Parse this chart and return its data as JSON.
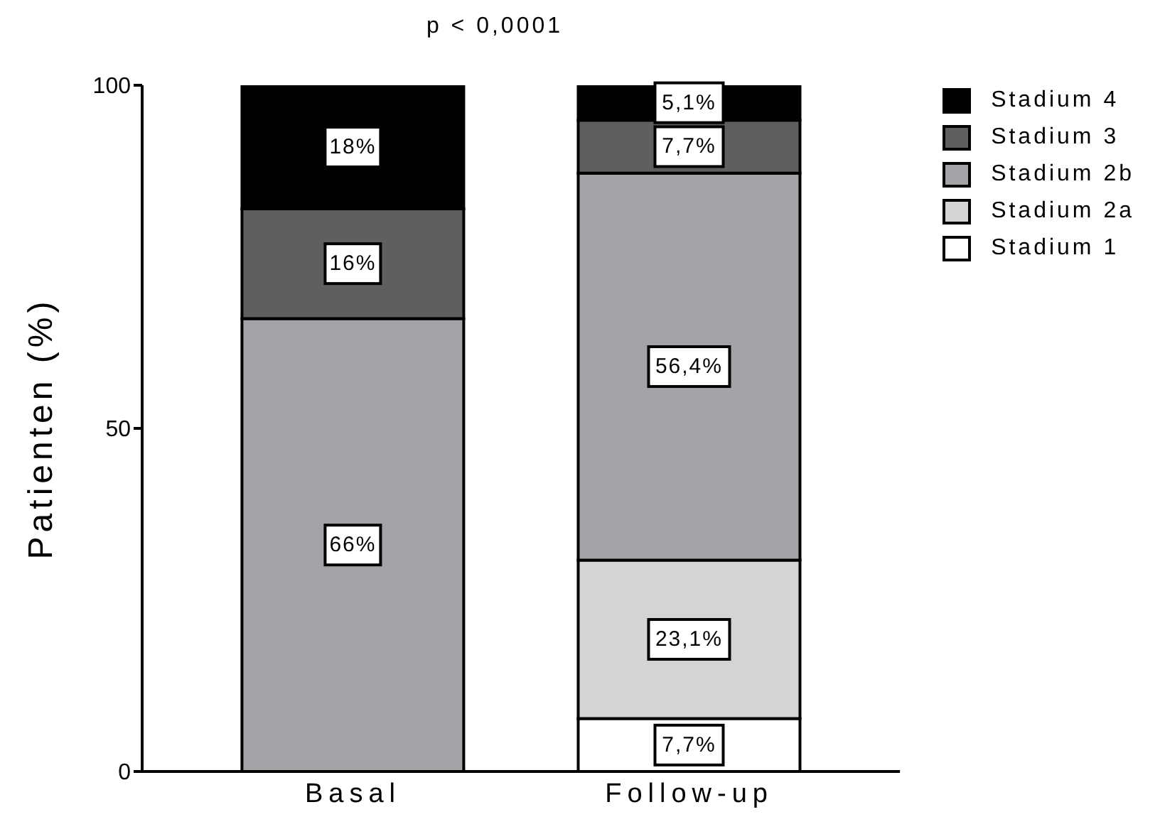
{
  "chart_data": {
    "type": "bar",
    "title": "p < 0,0001",
    "ylabel": "Patienten (%)",
    "categories": [
      "Basal",
      "Follow-up"
    ],
    "stacked": true,
    "ylim": [
      0,
      100
    ],
    "yticks": [
      0,
      50,
      100
    ],
    "grid": false,
    "legend": "top right",
    "series": [
      {
        "name": "Stadium 1",
        "color": "#ffffff",
        "values": [
          0,
          7.7
        ],
        "value_labels": [
          null,
          "7,7%"
        ]
      },
      {
        "name": "Stadium 2a",
        "color": "#d4d4d4",
        "values": [
          0,
          23.1
        ],
        "value_labels": [
          null,
          "23,1%"
        ]
      },
      {
        "name": "Stadium 2b",
        "color": "#a3a3a8",
        "values": [
          66,
          56.4
        ],
        "value_labels": [
          "66%",
          "56,4%"
        ]
      },
      {
        "name": "Stadium 3",
        "color": "#5f5f5f",
        "values": [
          16,
          7.7
        ],
        "value_labels": [
          "16%",
          "7,7%"
        ]
      },
      {
        "name": "Stadium 4",
        "color": "#000000",
        "values": [
          18,
          5.1
        ],
        "value_labels": [
          "18%",
          "5,1%"
        ]
      }
    ]
  }
}
